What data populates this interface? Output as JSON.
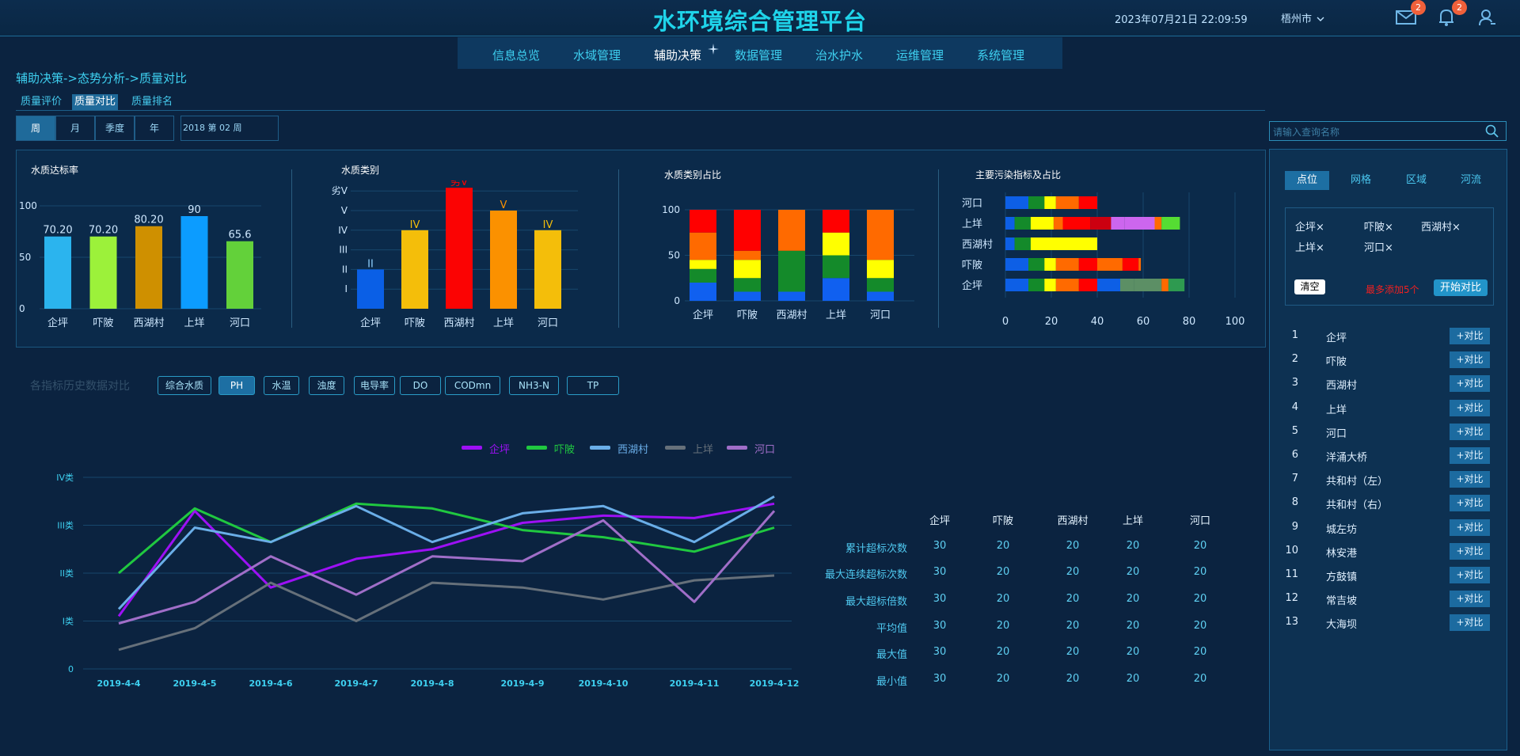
{
  "header": {
    "title": "水环境综合管理平台",
    "datetime": "2023年07月21日 22:09:59",
    "city": "梧州市",
    "mail_count": "2",
    "bell_count": "2"
  },
  "nav": {
    "items": [
      "信息总览",
      "水域管理",
      "辅助决策",
      "数据管理",
      "治水护水",
      "运维管理",
      "系统管理"
    ],
    "active": "辅助决策"
  },
  "breadcrumb": "辅助决策->态势分析->质量对比",
  "quality_tabs": [
    "质量评价",
    "质量对比",
    "质量排名"
  ],
  "period_tabs": [
    "周",
    "月",
    "季度",
    "年"
  ],
  "period_value": "2018 第 02 周",
  "search": {
    "placeholder": "请输入查询名称"
  },
  "charts": {
    "standard_rate": {
      "title": "水质达标率",
      "categories": [
        "企坪",
        "吓陂",
        "西湖村",
        "上垟",
        "河口"
      ],
      "values": [
        70.2,
        70.2,
        80.2,
        90,
        65.6
      ],
      "value_labels": [
        "70.20",
        "70.20",
        "80.20",
        "90",
        "65.6"
      ],
      "colors": [
        "#2bb4ee",
        "#9cf13a",
        "#cf9000",
        "#0c9cff",
        "#63d13a"
      ],
      "yticks": [
        "100",
        "50",
        "0"
      ]
    },
    "water_class": {
      "title": "水质类别",
      "categories": [
        "企坪",
        "吓陂",
        "西湖村",
        "上垟",
        "河口"
      ],
      "levels": [
        2,
        4,
        6,
        5,
        4
      ],
      "value_labels": [
        "II",
        "IV",
        "劣V",
        "V",
        "IV"
      ],
      "colors": [
        "#0a5fe6",
        "#f4be0a",
        "#fb0303",
        "#fb9100",
        "#f4be0a"
      ],
      "yticks": [
        "劣V",
        "V",
        "IV",
        "III",
        "II",
        "I"
      ]
    },
    "class_ratio": {
      "title": "水质类别占比",
      "categories": [
        "企坪",
        "吓陂",
        "西湖村",
        "上垟",
        "河口"
      ],
      "yticks": [
        "100",
        "50",
        "0"
      ],
      "class_colors": [
        "#1060f0",
        "#148a2a",
        "#ffff00",
        "#ff6a00",
        "#ff0000"
      ],
      "stacks": [
        [
          20,
          15,
          10,
          30,
          25
        ],
        [
          10,
          15,
          20,
          10,
          45
        ],
        [
          10,
          45,
          0,
          45,
          0
        ],
        [
          25,
          25,
          25,
          0,
          25
        ],
        [
          10,
          15,
          20,
          55,
          0
        ]
      ]
    },
    "pollutants": {
      "title": "主要污染指标及占比",
      "categories": [
        "河口",
        "上垟",
        "西湖村",
        "吓陂",
        "企坪"
      ],
      "xticks": [
        "0",
        "20",
        "40",
        "60",
        "80",
        "100"
      ]
    }
  },
  "history": {
    "label": "各指标历史数据对比",
    "filters": [
      "综合水质",
      "PH",
      "水温",
      "浊度",
      "电导率",
      "DO",
      "CODmn",
      "NH3-N",
      "TP"
    ],
    "active_filter": "PH"
  },
  "chart_data": {
    "type": "line",
    "x": [
      "2019-4-4",
      "2019-4-5",
      "2019-4-6",
      "2019-4-7",
      "2019-4-8",
      "2019-4-9",
      "2019-4-10",
      "2019-4-11",
      "2019-4-12"
    ],
    "yticks": [
      "IV类",
      "III类",
      "II类",
      "I类",
      "0"
    ],
    "ylim": [
      0,
      4
    ],
    "series": [
      {
        "name": "企坪",
        "color": "#9d10f5",
        "values": [
          1.1,
          3.3,
          1.7,
          2.3,
          2.5,
          3.05,
          3.2,
          3.15,
          3.45
        ]
      },
      {
        "name": "吓陂",
        "color": "#20c840",
        "values": [
          2.0,
          3.35,
          2.65,
          3.45,
          3.35,
          2.9,
          2.75,
          2.45,
          2.95
        ]
      },
      {
        "name": "西湖村",
        "color": "#6aaee8",
        "values": [
          1.25,
          2.95,
          2.65,
          3.4,
          2.65,
          3.25,
          3.4,
          2.65,
          3.6
        ]
      },
      {
        "name": "上垟",
        "color": "#66707a",
        "values": [
          0.4,
          0.85,
          1.8,
          1.0,
          1.8,
          1.7,
          1.45,
          1.85,
          1.95
        ]
      },
      {
        "name": "河口",
        "color": "#a06ec8",
        "values": [
          0.95,
          1.4,
          2.35,
          1.55,
          2.35,
          2.25,
          3.1,
          1.4,
          3.3
        ]
      }
    ],
    "legend": "top-right"
  },
  "stats": {
    "columns": [
      "企坪",
      "吓陂",
      "西湖村",
      "上垟",
      "河口"
    ],
    "rows": [
      {
        "label": "累计超标次数",
        "values": [
          "30",
          "20",
          "20",
          "20",
          "20"
        ]
      },
      {
        "label": "最大连续超标次数",
        "values": [
          "30",
          "20",
          "20",
          "20",
          "20"
        ]
      },
      {
        "label": "最大超标倍数",
        "values": [
          "30",
          "20",
          "20",
          "20",
          "20"
        ]
      },
      {
        "label": "平均值",
        "values": [
          "30",
          "20",
          "20",
          "20",
          "20"
        ]
      },
      {
        "label": "最大值",
        "values": [
          "30",
          "20",
          "20",
          "20",
          "20"
        ]
      },
      {
        "label": "最小值",
        "values": [
          "30",
          "20",
          "20",
          "20",
          "20"
        ]
      }
    ]
  },
  "right_panel": {
    "tabs": [
      "点位",
      "网格",
      "区域",
      "河流"
    ],
    "active_tab": "点位",
    "selected": [
      "企坪×",
      "吓陂×",
      "西湖村×",
      "上垟×",
      "河口×"
    ],
    "clear_label": "清空",
    "max_note": "最多添加5个",
    "start_label": "开始对比",
    "add_label": "+对比",
    "points": [
      {
        "idx": "1",
        "name": "企坪"
      },
      {
        "idx": "2",
        "name": "吓陂"
      },
      {
        "idx": "3",
        "name": "西湖村"
      },
      {
        "idx": "4",
        "name": "上垟"
      },
      {
        "idx": "5",
        "name": "河口"
      },
      {
        "idx": "6",
        "name": "洋涌大桥"
      },
      {
        "idx": "7",
        "name": "共和村（左）"
      },
      {
        "idx": "8",
        "name": "共和村（右）"
      },
      {
        "idx": "9",
        "name": "城左坊"
      },
      {
        "idx": "10",
        "name": "林安港"
      },
      {
        "idx": "11",
        "name": "方鼓镇"
      },
      {
        "idx": "12",
        "name": "常吉坡"
      },
      {
        "idx": "13",
        "name": "大海坝"
      }
    ]
  }
}
